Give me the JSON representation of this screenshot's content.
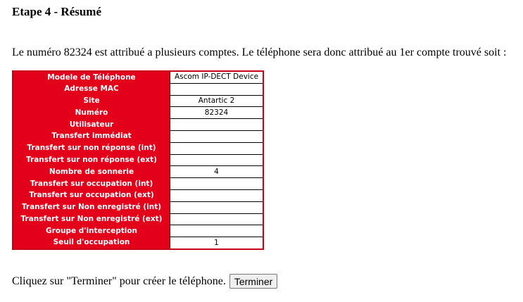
{
  "title": "Etape 4 - Résumé",
  "intro": "Le numéro 82324 est attribué a plusieurs comptes. Le téléphone sera donc attribué au 1er compte trouvé soit :",
  "rows": [
    {
      "label": "Modele de Téléphone",
      "value": "Ascom IP-DECT Device"
    },
    {
      "label": "Adresse MAC",
      "value": ""
    },
    {
      "label": "Site",
      "value": "Antartic 2"
    },
    {
      "label": "Numéro",
      "value": "82324"
    },
    {
      "label": "Utilisateur",
      "value": ""
    },
    {
      "label": "Transfert immédiat",
      "value": ""
    },
    {
      "label": "Transfert sur non réponse (int)",
      "value": ""
    },
    {
      "label": "Transfert sur non réponse (ext)",
      "value": ""
    },
    {
      "label": "Nombre de sonnerie",
      "value": "4"
    },
    {
      "label": "Transfert sur occupation (int)",
      "value": ""
    },
    {
      "label": "Transfert sur occupation (ext)",
      "value": ""
    },
    {
      "label": "Transfert sur Non enregistré (int)",
      "value": ""
    },
    {
      "label": "Transfert sur Non enregistré (ext)",
      "value": ""
    },
    {
      "label": "Groupe d'interception",
      "value": ""
    },
    {
      "label": "Seuil d'occupation",
      "value": "1"
    }
  ],
  "footer": {
    "text": "Cliquez sur \"Terminer\" pour créer le téléphone.",
    "button": "Terminer"
  },
  "colors": {
    "accent": "#e2001a"
  }
}
